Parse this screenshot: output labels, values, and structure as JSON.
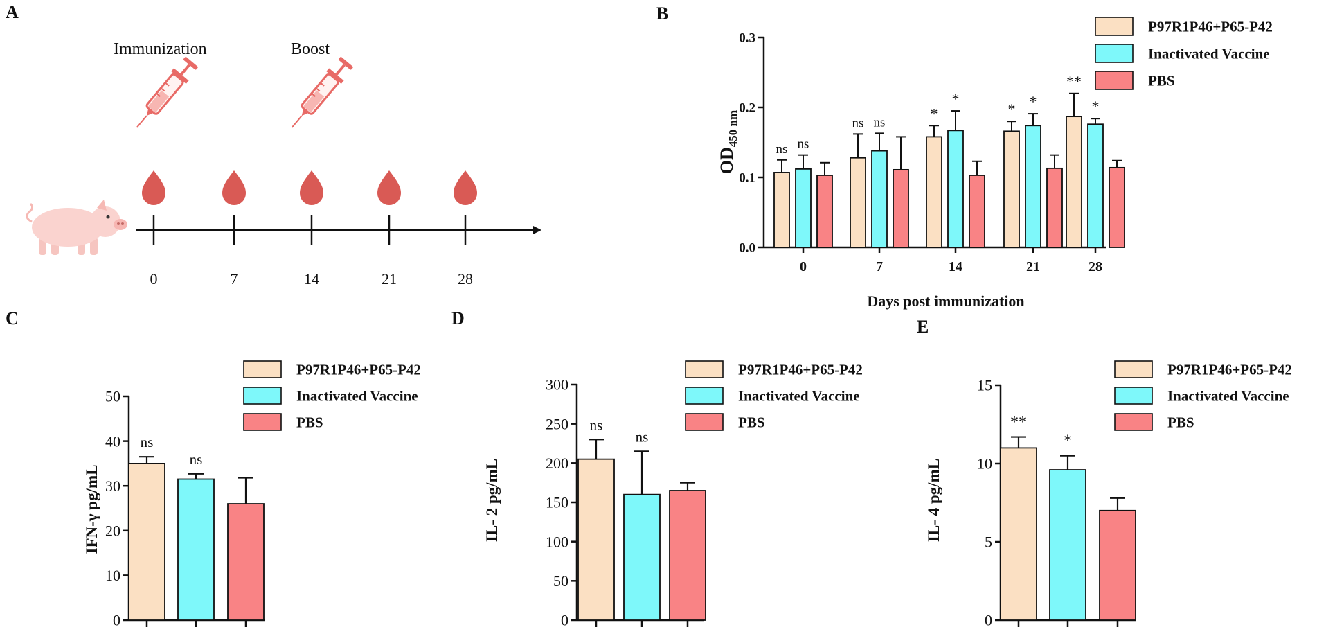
{
  "colors": {
    "series1": "#fbe0c3",
    "series2": "#7ef8fa",
    "series3": "#f98385",
    "drop": "#d95a55",
    "syringe": "#e86a66",
    "pig": "#fad3cf"
  },
  "panel_a": {
    "letter": "A",
    "immunization_label": "Immunization",
    "boost_label": "Boost",
    "timepoints": [
      "0",
      "7",
      "14",
      "21",
      "28"
    ],
    "icons": [
      "syringe-icon",
      "syringe-icon",
      "blood-drop-icon",
      "pig-icon"
    ]
  },
  "legend": [
    "P97R1P46+P65-P42",
    "Inactivated Vaccine",
    "PBS"
  ],
  "chart_data": [
    {
      "panel": "B",
      "type": "bar",
      "title": "",
      "xlabel": "Days post immunization",
      "ylabel": "OD",
      "ylabel_sub": "450 nm",
      "categories": [
        "0",
        "7",
        "14",
        "21",
        "28"
      ],
      "ylim": [
        0,
        0.3
      ],
      "yticks": [
        0.0,
        0.1,
        0.2,
        0.3
      ],
      "ytick_labels": [
        "0.0",
        "0.1",
        "0.2",
        "0.3"
      ],
      "series": [
        {
          "name": "P97R1P46+P65-P42",
          "values": [
            0.107,
            0.128,
            0.158,
            0.166,
            0.187
          ],
          "errors": [
            0.018,
            0.034,
            0.016,
            0.014,
            0.033
          ],
          "sig": [
            "ns",
            "ns",
            "*",
            "*",
            "**"
          ]
        },
        {
          "name": "Inactivated Vaccine",
          "values": [
            0.112,
            0.138,
            0.167,
            0.174,
            0.176
          ],
          "errors": [
            0.02,
            0.025,
            0.028,
            0.017,
            0.008
          ],
          "sig": [
            "ns",
            "ns",
            "*",
            "*",
            "*"
          ]
        },
        {
          "name": "PBS",
          "values": [
            0.103,
            0.111,
            0.103,
            0.113,
            0.114
          ],
          "errors": [
            0.018,
            0.047,
            0.02,
            0.019,
            0.01
          ],
          "sig": [
            "",
            "",
            "",
            "",
            ""
          ]
        }
      ]
    },
    {
      "panel": "C",
      "type": "bar",
      "title": "",
      "xlabel": "",
      "ylabel": "IFN-γ pg/mL",
      "categories": [
        "P97R1P46+P65-P42",
        "Inactivated Vaccine",
        "PBS"
      ],
      "values": [
        35.0,
        31.5,
        26.0
      ],
      "errors": [
        1.5,
        1.2,
        5.8
      ],
      "sig": [
        "ns",
        "ns",
        ""
      ],
      "ylim": [
        0,
        50
      ],
      "yticks": [
        0,
        10,
        20,
        30,
        40,
        50
      ],
      "ytick_labels": [
        "0",
        "10",
        "20",
        "30",
        "40",
        "50"
      ]
    },
    {
      "panel": "D",
      "type": "bar",
      "title": "",
      "xlabel": "",
      "ylabel": "IL- 2 pg/mL",
      "categories": [
        "P97R1P46+P65-P42",
        "Inactivated Vaccine",
        "PBS"
      ],
      "values": [
        205,
        160,
        165
      ],
      "errors": [
        25,
        55,
        10
      ],
      "sig": [
        "ns",
        "ns",
        ""
      ],
      "ylim": [
        0,
        300
      ],
      "yticks": [
        0,
        50,
        100,
        150,
        200,
        250,
        300
      ],
      "ytick_labels": [
        "0",
        "50",
        "100",
        "150",
        "200",
        "250",
        "300"
      ]
    },
    {
      "panel": "E",
      "type": "bar",
      "title": "",
      "xlabel": "",
      "ylabel": "IL- 4 pg/mL",
      "categories": [
        "P97R1P46+P65-P42",
        "Inactivated Vaccine",
        "PBS"
      ],
      "values": [
        11.0,
        9.6,
        7.0
      ],
      "errors": [
        0.7,
        0.9,
        0.8
      ],
      "sig": [
        "**",
        "*",
        ""
      ],
      "ylim": [
        0,
        15
      ],
      "yticks": [
        0,
        5,
        10,
        15
      ],
      "ytick_labels": [
        "0",
        "5",
        "10",
        "15"
      ]
    }
  ]
}
